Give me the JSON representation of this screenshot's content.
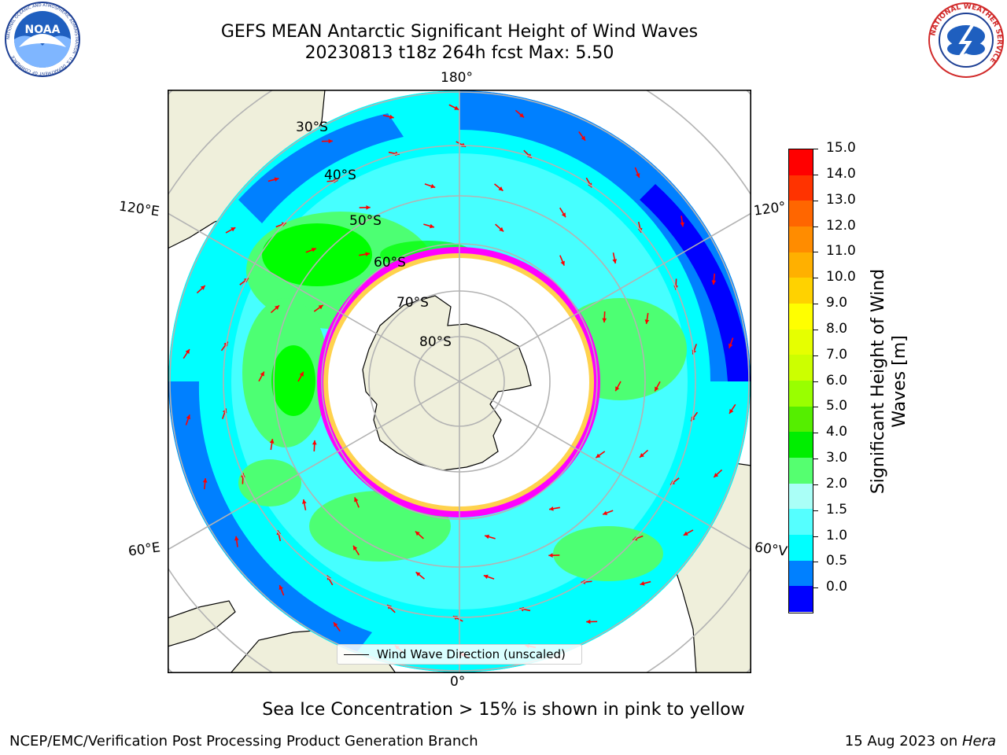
{
  "header": {
    "title_line1": "GEFS MEAN Antarctic Significant Height of Wind Waves",
    "title_line2": "20230813 t18z 264h fcst   Max: 5.50"
  },
  "logos": {
    "noaa": {
      "text": "NOAA",
      "ring_text": "NATIONAL OCEANIC AND ATMOSPHERIC ADMINISTRATION · U.S. DEPARTMENT OF COMMERCE"
    },
    "nws": {
      "ring_text": "NATIONAL WEATHER SERVICE"
    }
  },
  "map": {
    "projection": "south-polar-stereographic",
    "lat_labels": [
      "30°S",
      "40°S",
      "50°S",
      "60°S",
      "70°S",
      "80°S"
    ],
    "lon_labels": {
      "top": "180°",
      "bottom": "0°",
      "left_upper": "120°E",
      "left_lower": "60°E",
      "right_upper": "120°",
      "right_lower": "60°V"
    },
    "legend_label": "Wind Wave Direction (unscaled)",
    "ocean_colors": [
      "#0000ff",
      "#0080ff",
      "#00ffff",
      "#7fffff",
      "#a6fffd",
      "#4dff73",
      "#00ff00"
    ],
    "land_color": "#efefdb",
    "ice_colors": [
      "#ff00ff",
      "#ff55ff",
      "#ffd24d",
      "#ffff00"
    ],
    "arrow_color": "#ff0000"
  },
  "colorbar": {
    "label": "Significant Height of Wind Waves [m]",
    "label_line1": "Significant Height of Wind",
    "label_line2": "Waves [m]",
    "ticks": [
      "15.0",
      "14.0",
      "13.0",
      "12.0",
      "11.0",
      "10.0",
      "9.0",
      "8.0",
      "7.0",
      "6.0",
      "5.0",
      "4.0",
      "3.0",
      "2.0",
      "1.5",
      "1.0",
      "0.5",
      "0.0"
    ],
    "colors_top_to_bottom": [
      "#ff0000",
      "#ff3300",
      "#ff6600",
      "#ff8c00",
      "#ffb000",
      "#ffd200",
      "#ffff00",
      "#e6ff00",
      "#ccff00",
      "#99ff00",
      "#55ee00",
      "#00ee00",
      "#55ff70",
      "#aafff7",
      "#55ffff",
      "#00ffff",
      "#0080ff",
      "#0000ff"
    ]
  },
  "footer": {
    "note": "Sea Ice Concentration > 15% is shown in pink to yellow",
    "credit": "NCEP/EMC/Verification Post Processing Product Generation Branch",
    "date_prefix": "15 Aug 2023 on ",
    "date_host": "Hera"
  }
}
